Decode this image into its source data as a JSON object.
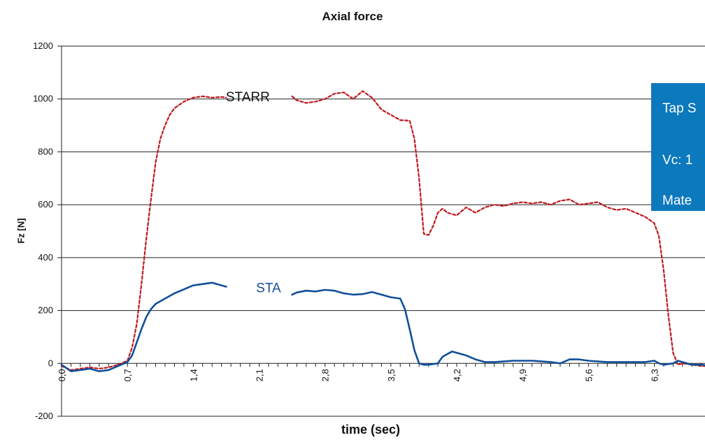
{
  "chart_data": {
    "type": "line",
    "title": "Axial force",
    "xlabel": "time (sec)",
    "ylabel": "Fz [N]",
    "xlim": [
      0,
      7.0
    ],
    "ylim": [
      -200,
      1200
    ],
    "y_ticks": [
      "-200",
      "0",
      "200",
      "400",
      "600",
      "800",
      "1000",
      "1200"
    ],
    "x_ticks": [
      "0,0",
      "0,7",
      "1,4",
      "2,1",
      "2,8",
      "3,5",
      "4,2",
      "4,9",
      "5,6",
      "6,3"
    ],
    "grid": "horizontal",
    "series": [
      {
        "name": "STARR",
        "color": "#c0181d",
        "style": "dashed",
        "segments": [
          [
            [
              0.0,
              -10
            ],
            [
              0.1,
              -25
            ],
            [
              0.2,
              -20
            ],
            [
              0.3,
              -15
            ],
            [
              0.4,
              -20
            ],
            [
              0.5,
              -15
            ],
            [
              0.6,
              -5
            ],
            [
              0.7,
              10
            ],
            [
              0.75,
              60
            ],
            [
              0.8,
              150
            ],
            [
              0.85,
              300
            ],
            [
              0.9,
              470
            ],
            [
              0.95,
              620
            ],
            [
              1.0,
              760
            ],
            [
              1.05,
              850
            ],
            [
              1.1,
              900
            ],
            [
              1.15,
              940
            ],
            [
              1.2,
              965
            ],
            [
              1.3,
              990
            ],
            [
              1.4,
              1005
            ],
            [
              1.5,
              1010
            ],
            [
              1.6,
              1005
            ],
            [
              1.7,
              1008
            ],
            [
              1.75,
              1005
            ]
          ],
          [
            [
              2.45,
              1010
            ],
            [
              2.5,
              995
            ],
            [
              2.6,
              985
            ],
            [
              2.7,
              990
            ],
            [
              2.8,
              1000
            ],
            [
              2.9,
              1020
            ],
            [
              3.0,
              1025
            ],
            [
              3.1,
              1000
            ],
            [
              3.2,
              1030
            ],
            [
              3.3,
              1005
            ],
            [
              3.4,
              960
            ],
            [
              3.5,
              940
            ],
            [
              3.6,
              920
            ],
            [
              3.7,
              918
            ],
            [
              3.75,
              850
            ],
            [
              3.8,
              700
            ],
            [
              3.85,
              490
            ],
            [
              3.9,
              485
            ],
            [
              3.95,
              520
            ],
            [
              4.0,
              570
            ],
            [
              4.05,
              585
            ],
            [
              4.1,
              570
            ],
            [
              4.2,
              560
            ],
            [
              4.3,
              590
            ],
            [
              4.4,
              570
            ],
            [
              4.5,
              590
            ],
            [
              4.6,
              600
            ],
            [
              4.7,
              595
            ],
            [
              4.8,
              605
            ],
            [
              4.9,
              610
            ],
            [
              5.0,
              605
            ],
            [
              5.1,
              610
            ],
            [
              5.2,
              600
            ],
            [
              5.3,
              615
            ],
            [
              5.4,
              620
            ],
            [
              5.5,
              600
            ],
            [
              5.6,
              605
            ],
            [
              5.7,
              610
            ],
            [
              5.8,
              590
            ],
            [
              5.9,
              580
            ],
            [
              6.0,
              585
            ],
            [
              6.1,
              570
            ],
            [
              6.2,
              555
            ],
            [
              6.3,
              530
            ],
            [
              6.35,
              480
            ],
            [
              6.4,
              350
            ],
            [
              6.45,
              180
            ],
            [
              6.5,
              40
            ],
            [
              6.55,
              -5
            ],
            [
              6.6,
              0
            ],
            [
              6.7,
              -5
            ],
            [
              6.8,
              -10
            ],
            [
              6.9,
              -10
            ],
            [
              7.0,
              -20
            ],
            [
              7.05,
              -15
            ]
          ]
        ]
      },
      {
        "name": "STA",
        "color": "#114f99",
        "style": "solid",
        "segments": [
          [
            [
              0.0,
              -5
            ],
            [
              0.1,
              -30
            ],
            [
              0.2,
              -25
            ],
            [
              0.3,
              -20
            ],
            [
              0.4,
              -30
            ],
            [
              0.5,
              -25
            ],
            [
              0.6,
              -10
            ],
            [
              0.7,
              5
            ],
            [
              0.75,
              30
            ],
            [
              0.8,
              80
            ],
            [
              0.85,
              130
            ],
            [
              0.9,
              175
            ],
            [
              0.95,
              205
            ],
            [
              1.0,
              225
            ],
            [
              1.1,
              245
            ],
            [
              1.2,
              265
            ],
            [
              1.3,
              280
            ],
            [
              1.4,
              295
            ],
            [
              1.5,
              300
            ],
            [
              1.6,
              305
            ],
            [
              1.7,
              295
            ],
            [
              1.75,
              290
            ]
          ],
          [
            [
              2.45,
              260
            ],
            [
              2.5,
              268
            ],
            [
              2.6,
              275
            ],
            [
              2.7,
              272
            ],
            [
              2.8,
              278
            ],
            [
              2.9,
              275
            ],
            [
              3.0,
              265
            ],
            [
              3.1,
              260
            ],
            [
              3.2,
              262
            ],
            [
              3.3,
              270
            ],
            [
              3.4,
              260
            ],
            [
              3.5,
              250
            ],
            [
              3.6,
              245
            ],
            [
              3.65,
              205
            ],
            [
              3.7,
              130
            ],
            [
              3.75,
              50
            ],
            [
              3.8,
              0
            ],
            [
              3.85,
              -5
            ],
            [
              3.9,
              -5
            ],
            [
              4.0,
              0
            ],
            [
              4.05,
              25
            ],
            [
              4.1,
              35
            ],
            [
              4.15,
              45
            ],
            [
              4.2,
              40
            ],
            [
              4.3,
              30
            ],
            [
              4.4,
              15
            ],
            [
              4.5,
              5
            ],
            [
              4.6,
              5
            ],
            [
              4.8,
              10
            ],
            [
              5.0,
              10
            ],
            [
              5.2,
              5
            ],
            [
              5.3,
              0
            ],
            [
              5.4,
              15
            ],
            [
              5.5,
              15
            ],
            [
              5.6,
              10
            ],
            [
              5.8,
              5
            ],
            [
              6.0,
              5
            ],
            [
              6.2,
              5
            ],
            [
              6.3,
              10
            ],
            [
              6.35,
              0
            ],
            [
              6.4,
              -5
            ],
            [
              6.5,
              0
            ],
            [
              6.55,
              10
            ],
            [
              6.6,
              5
            ],
            [
              6.7,
              -5
            ],
            [
              6.8,
              -5
            ],
            [
              6.9,
              -10
            ],
            [
              7.0,
              -10
            ],
            [
              7.05,
              -5
            ]
          ]
        ]
      }
    ],
    "annotations": [
      {
        "text": "STARR",
        "x": 1.98,
        "y": 1010,
        "color": "#111111"
      },
      {
        "text": "STA",
        "x": 2.2,
        "y": 287,
        "color": "#114f99"
      }
    ]
  },
  "infobox": {
    "lines": [
      "Tap S",
      "Vc: 1",
      "Mate"
    ],
    "background": "#0c79bd"
  }
}
